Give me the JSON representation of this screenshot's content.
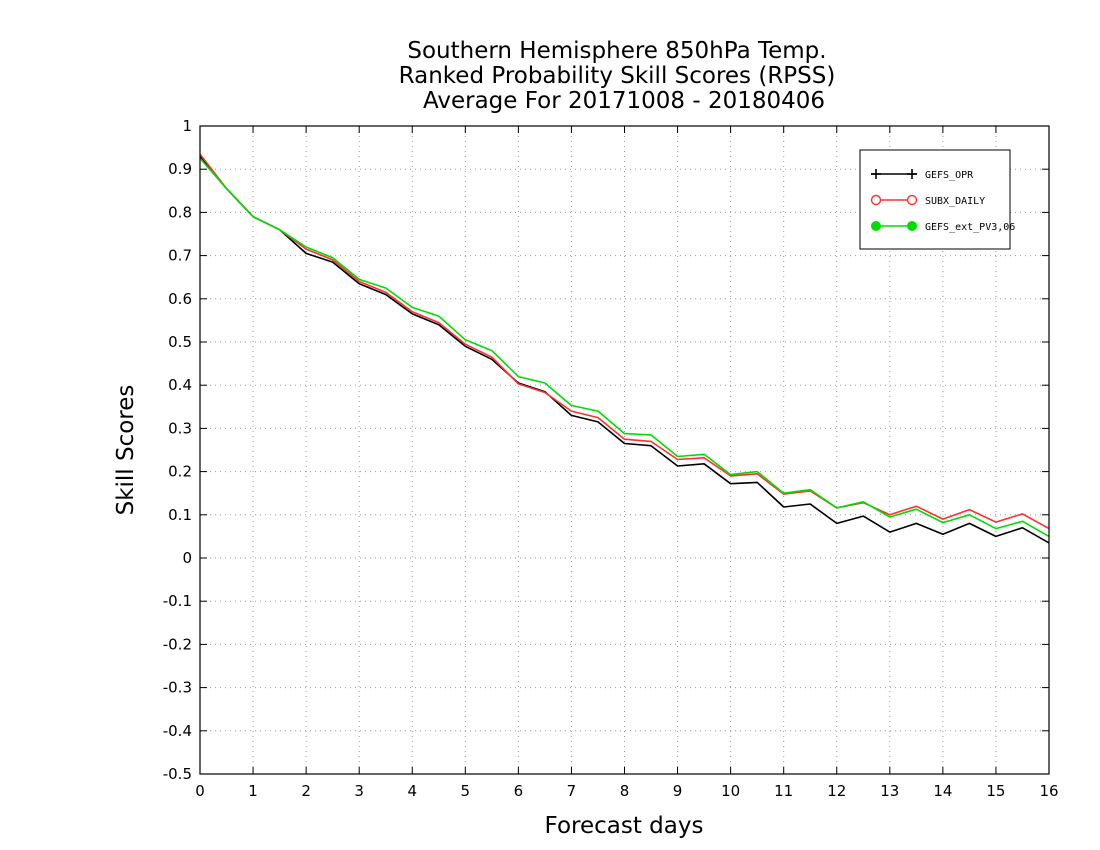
{
  "chart_data": {
    "type": "line",
    "title": [
      "Southern Hemisphere 850hPa Temp.",
      "Ranked Probability Skill Scores (RPSS)",
      "Average For 20171008 - 20180406"
    ],
    "xlabel": "Forecast days",
    "ylabel": "Skill Scores",
    "xlim": [
      0,
      16
    ],
    "ylim": [
      -0.5,
      1
    ],
    "xticks": [
      "0",
      "1",
      "2",
      "3",
      "4",
      "5",
      "6",
      "7",
      "8",
      "9",
      "10",
      "11",
      "12",
      "13",
      "14",
      "15",
      "16"
    ],
    "yticks": [
      "1",
      "0.9",
      "0.8",
      "0.7",
      "0.6",
      "0.5",
      "0.4",
      "0.3",
      "0.2",
      "0.1",
      "0",
      "-0.1",
      "-0.2",
      "-0.3",
      "-0.4",
      "-0.5"
    ],
    "grid": true,
    "legend_position": "top-right",
    "x": [
      0,
      0.5,
      1,
      1.5,
      2,
      2.5,
      3,
      3.5,
      4,
      4.5,
      5,
      5.5,
      6,
      6.5,
      7,
      7.5,
      8,
      8.5,
      9,
      9.5,
      10,
      10.5,
      11,
      11.5,
      12,
      12.5,
      13,
      13.5,
      14,
      14.5,
      15,
      15.5,
      16
    ],
    "series": [
      {
        "name": "GEFS_OPR",
        "color": "#000000",
        "values": [
          0.93,
          0.855,
          0.79,
          0.76,
          0.705,
          0.685,
          0.635,
          0.61,
          0.565,
          0.54,
          0.49,
          0.46,
          0.405,
          0.385,
          0.33,
          0.315,
          0.265,
          0.26,
          0.213,
          0.218,
          0.172,
          0.175,
          0.118,
          0.125,
          0.08,
          0.097,
          0.06,
          0.08,
          0.055,
          0.08,
          0.05,
          0.07,
          0.035
        ]
      },
      {
        "name": "SUBX_DAILY",
        "color": "#ff3030",
        "values": [
          0.935,
          0.855,
          0.79,
          0.76,
          0.715,
          0.69,
          0.64,
          0.615,
          0.57,
          0.545,
          0.495,
          0.465,
          0.403,
          0.383,
          0.34,
          0.325,
          0.275,
          0.27,
          0.228,
          0.232,
          0.19,
          0.195,
          0.148,
          0.155,
          0.116,
          0.128,
          0.1,
          0.12,
          0.09,
          0.112,
          0.083,
          0.102,
          0.068
        ]
      },
      {
        "name": "GEFS_ext_PV3,06",
        "color": "#00dd00",
        "values": [
          0.925,
          0.855,
          0.79,
          0.76,
          0.72,
          0.695,
          0.645,
          0.625,
          0.58,
          0.56,
          0.505,
          0.48,
          0.42,
          0.405,
          0.353,
          0.34,
          0.288,
          0.285,
          0.235,
          0.24,
          0.193,
          0.2,
          0.15,
          0.158,
          0.116,
          0.13,
          0.095,
          0.113,
          0.082,
          0.1,
          0.068,
          0.085,
          0.05
        ]
      }
    ]
  }
}
